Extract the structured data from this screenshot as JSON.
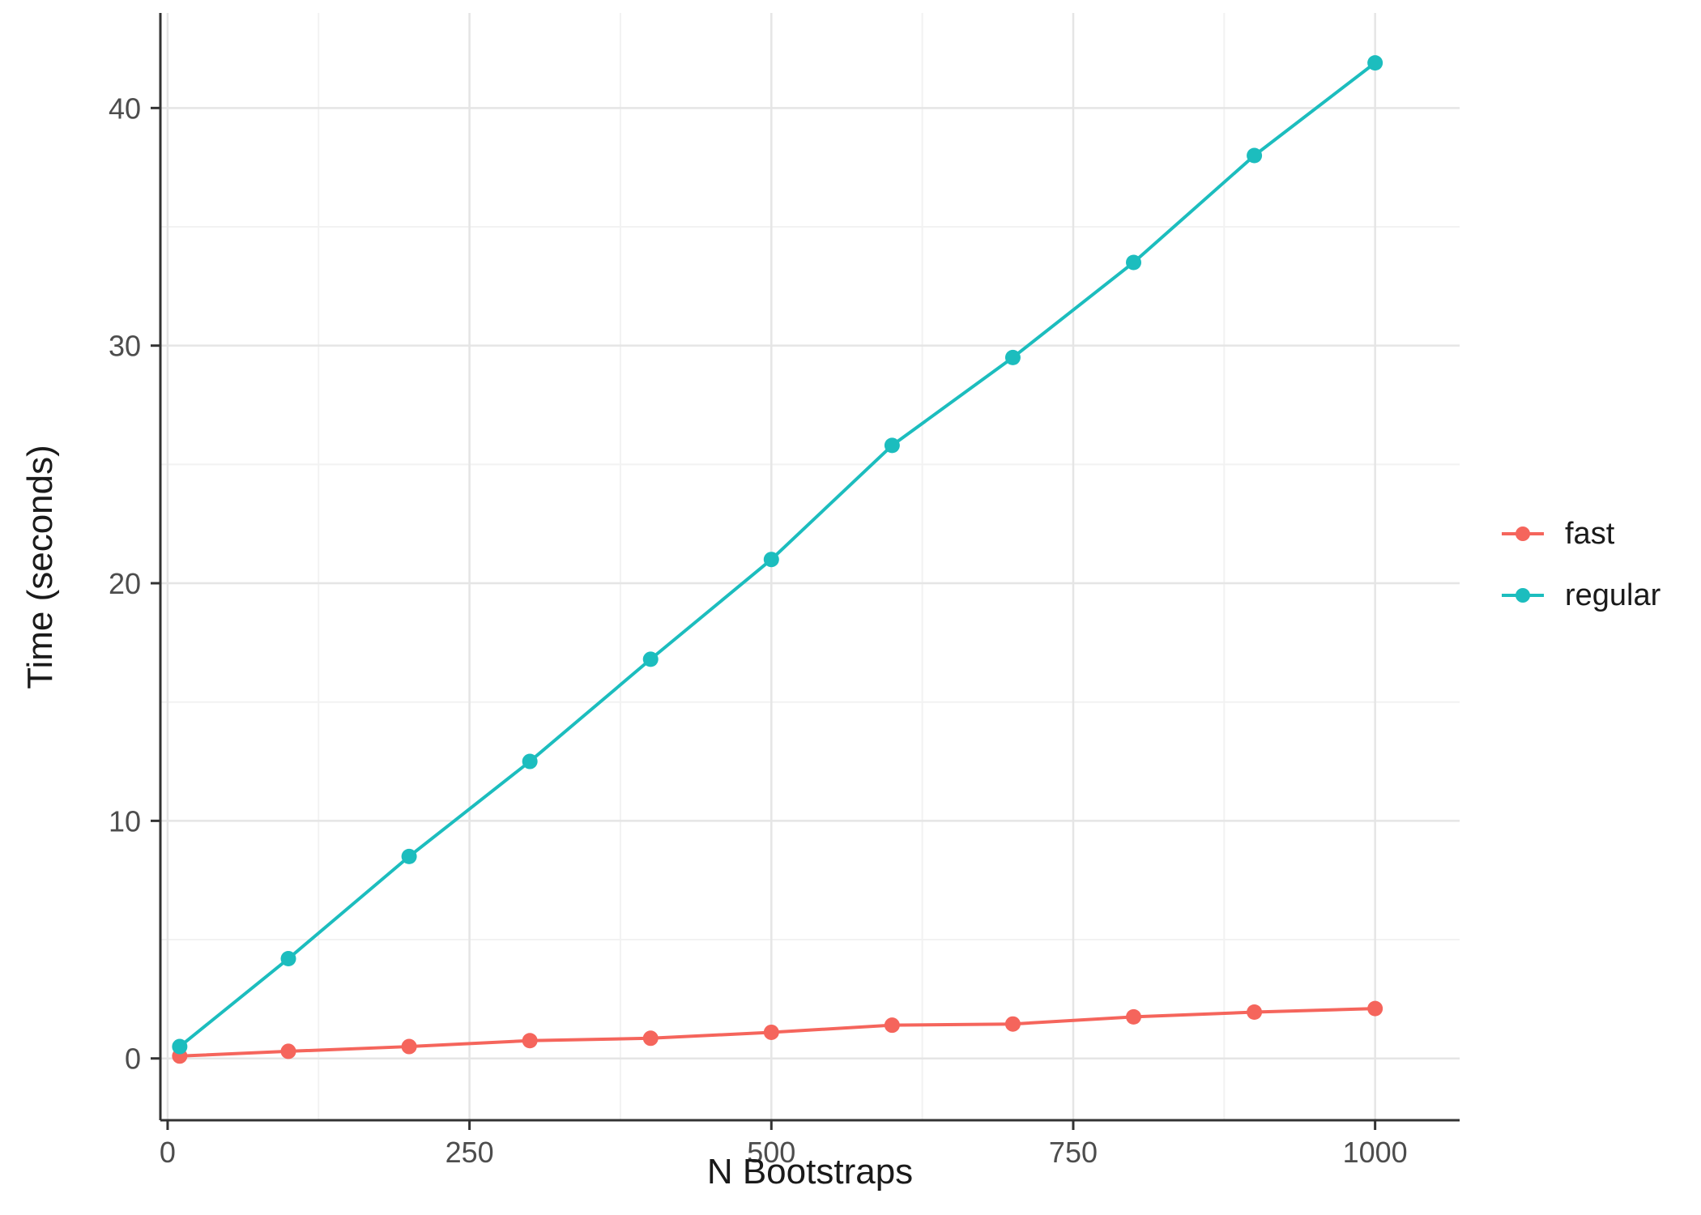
{
  "chart_data": {
    "type": "line",
    "title": "",
    "xlabel": "N Bootstraps",
    "ylabel": "Time (seconds)",
    "x": [
      10,
      100,
      200,
      300,
      400,
      500,
      600,
      700,
      800,
      900,
      1000
    ],
    "series": [
      {
        "name": "fast",
        "color": "#F5655C",
        "values": [
          0.1,
          0.3,
          0.5,
          0.75,
          0.85,
          1.1,
          1.4,
          1.45,
          1.75,
          1.95,
          2.1
        ]
      },
      {
        "name": "regular",
        "color": "#1CBDBE",
        "values": [
          0.5,
          4.2,
          8.5,
          12.5,
          16.8,
          21.0,
          25.8,
          29.5,
          33.5,
          38.0,
          41.9
        ]
      }
    ],
    "x_ticks": [
      0,
      250,
      500,
      750,
      1000
    ],
    "y_ticks": [
      0,
      10,
      20,
      30,
      40
    ],
    "x_minor_ticks": [
      125,
      375,
      625,
      875
    ],
    "y_minor_ticks": [
      5,
      15,
      25,
      35
    ],
    "xlim": [
      -6,
      1070
    ],
    "ylim": [
      -2.6,
      44
    ],
    "grid": true,
    "legend_position": "right",
    "legend_labels": [
      "fast",
      "regular"
    ]
  },
  "style": {
    "background": "#FFFFFF",
    "grid_major_color": "#E5E5E5",
    "grid_minor_color": "#F2F2F2",
    "axis_line_color": "#333333",
    "tick_label_color": "#4D4D4D",
    "title_color": "#1A1A1A"
  }
}
